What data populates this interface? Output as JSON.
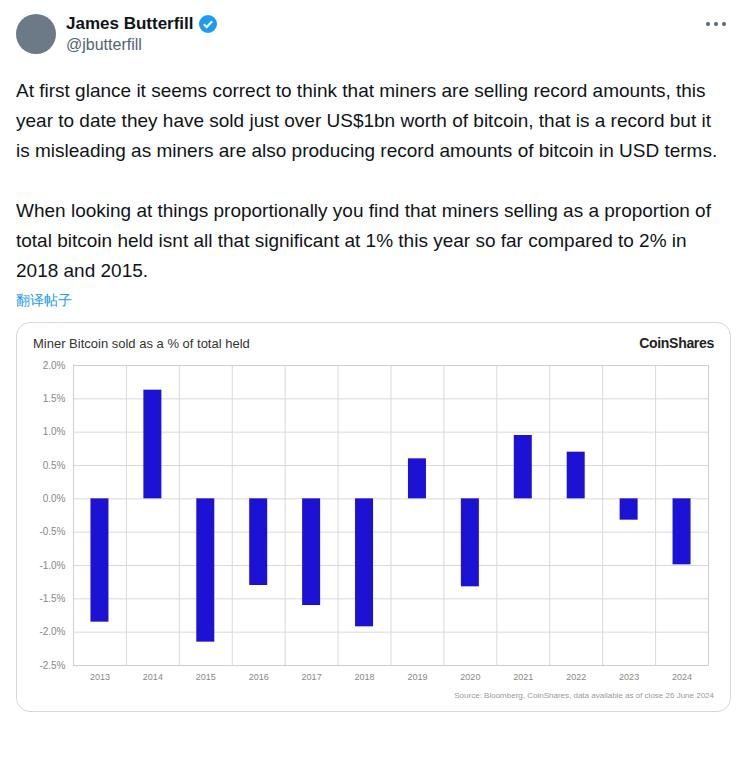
{
  "post": {
    "author": "James Butterfill",
    "handle": "@jbutterfill",
    "text": [
      "At first glance it seems correct to think that miners are selling record amounts, this year to date they have sold just over US$1bn worth of bitcoin, that is a record but it is misleading as miners are also producing record amounts of bitcoin in USD terms.",
      "When looking at things proportionally you find that miners selling as a proportion of total bitcoin held isnt all that significant at 1% this year so far compared to 2% in 2018 and 2015."
    ],
    "translate": "翻译帖子"
  },
  "chart_data": {
    "type": "bar",
    "title": "Miner Bitcoin sold as a % of total held",
    "logo": "CoinShares",
    "source": "Source: Bloomberg, CoinShares, data available as of close 26 June 2024",
    "categories": [
      "2013",
      "2014",
      "2015",
      "2016",
      "2017",
      "2018",
      "2019",
      "2020",
      "2021",
      "2022",
      "2023",
      "2024"
    ],
    "values": [
      -1.85,
      1.63,
      -2.15,
      -1.3,
      -1.6,
      -1.92,
      0.6,
      -1.32,
      0.95,
      0.7,
      -0.32,
      -0.99
    ],
    "color": "#1c12d4",
    "ylim": [
      -2.5,
      2
    ],
    "yticks": [
      {
        "value": -2.5,
        "label": "-2.5%"
      },
      {
        "value": -2,
        "label": "-2.0%"
      },
      {
        "value": -1.5,
        "label": "-1.5%"
      },
      {
        "value": -1,
        "label": "-1.0%"
      },
      {
        "value": -0.5,
        "label": "-0.5%"
      },
      {
        "value": 0,
        "label": "0.0%"
      },
      {
        "value": 0.5,
        "label": "0.5%"
      },
      {
        "value": 1,
        "label": "1.0%"
      },
      {
        "value": 1.5,
        "label": "1.5%"
      },
      {
        "value": 2,
        "label": "2.0%"
      }
    ],
    "grid": true
  }
}
